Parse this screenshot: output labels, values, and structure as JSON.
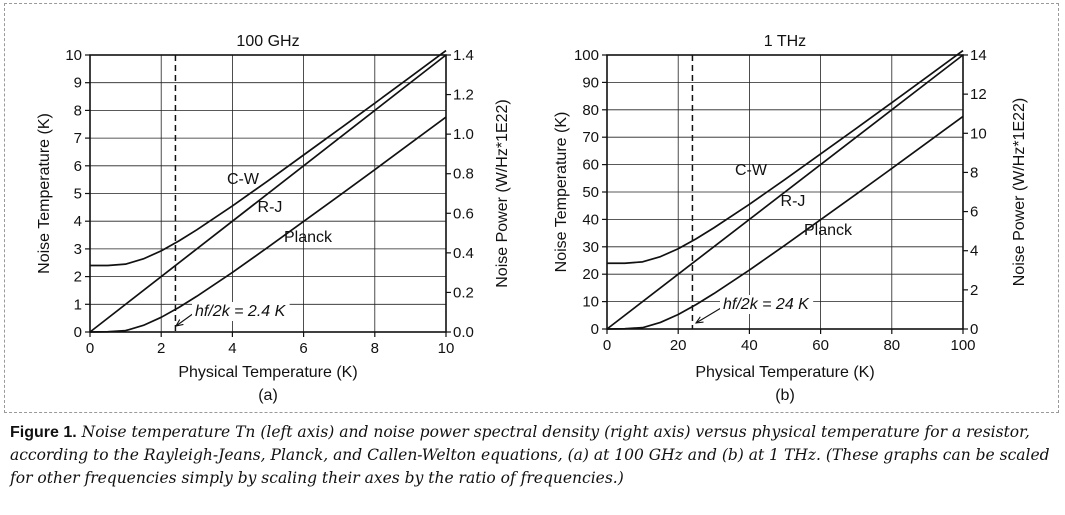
{
  "charts": [
    {
      "title": "100 GHz",
      "xlabel": "Physical Temperature (K)",
      "ylabel_left": "Noise Temperature (K)",
      "ylabel_right": "Noise Power (W/Hz*1E22)",
      "panel_label": "(a)",
      "annotation": "hf/2k = 2.4 K",
      "series_labels": [
        "C-W",
        "R-J",
        "Planck"
      ]
    },
    {
      "title": "1 THz",
      "xlabel": "Physical Temperature (K)",
      "ylabel_left": "Noise Temperature (K)",
      "ylabel_right": "Noise Power (W/Hz*1E22)",
      "panel_label": "(b)",
      "annotation": "hf/2k = 24 K",
      "series_labels": [
        "C-W",
        "R-J",
        "Planck"
      ]
    }
  ],
  "caption": {
    "label": "Figure 1.",
    "text": "Noise temperature Tn (left axis) and noise power spectral density (right axis) versus physical temperature for a resistor, according to the Rayleigh-Jeans, Planck, and Callen-Welton equations, (a) at 100 GHz and (b) at 1 THz. (These graphs can be scaled for other frequencies simply by scaling their axes by the ratio of frequencies.)"
  },
  "chart_data": [
    {
      "type": "line",
      "title": "100 GHz",
      "xlabel": "Physical Temperature (K)",
      "ylabel": "Noise Temperature (K)",
      "y2label": "Noise Power (W/Hz*1E22)",
      "xlim": [
        0,
        10
      ],
      "ylim": [
        0,
        10
      ],
      "y2lim": [
        0,
        1.4
      ],
      "xticks": [
        0,
        2,
        4,
        6,
        8,
        10
      ],
      "yticks": [
        0,
        1,
        2,
        3,
        4,
        5,
        6,
        7,
        8,
        9,
        10
      ],
      "y2ticks": [
        "0.0",
        "0.2",
        "0.4",
        "0.6",
        "0.8",
        "1.0",
        "1.2",
        "1.4"
      ],
      "grid": true,
      "vline": {
        "x": 2.4,
        "style": "dashed",
        "label": "hf/2k = 2.4 K"
      },
      "series": [
        {
          "name": "C-W",
          "x": [
            0,
            0.5,
            1,
            1.5,
            2,
            2.5,
            3,
            4,
            5,
            6,
            7,
            8,
            9,
            10
          ],
          "y": [
            2.4,
            2.4,
            2.45,
            2.64,
            2.93,
            3.29,
            3.69,
            4.55,
            5.46,
            6.39,
            7.32,
            8.26,
            9.21,
            10.16
          ]
        },
        {
          "name": "R-J",
          "x": [
            0,
            10
          ],
          "y": [
            0,
            10
          ]
        },
        {
          "name": "Planck",
          "x": [
            0,
            0.5,
            1,
            1.5,
            2,
            2.5,
            3,
            4,
            5,
            6,
            7,
            8,
            9,
            10
          ],
          "y": [
            0,
            0.01,
            0.05,
            0.24,
            0.53,
            0.89,
            1.29,
            2.15,
            3.06,
            3.99,
            4.92,
            5.86,
            6.81,
            7.76
          ]
        }
      ]
    },
    {
      "type": "line",
      "title": "1 THz",
      "xlabel": "Physical Temperature (K)",
      "ylabel": "Noise Temperature (K)",
      "y2label": "Noise Power (W/Hz*1E22)",
      "xlim": [
        0,
        100
      ],
      "ylim": [
        0,
        100
      ],
      "y2lim": [
        0,
        14
      ],
      "xticks": [
        0,
        20,
        40,
        60,
        80,
        100
      ],
      "yticks": [
        0,
        10,
        20,
        30,
        40,
        50,
        60,
        70,
        80,
        90,
        100
      ],
      "y2ticks": [
        "0",
        "2",
        "4",
        "6",
        "8",
        "10",
        "12",
        "14"
      ],
      "grid": true,
      "vline": {
        "x": 24,
        "style": "dashed",
        "label": "hf/2k = 24 K"
      },
      "series": [
        {
          "name": "C-W",
          "x": [
            0,
            5,
            10,
            15,
            20,
            25,
            30,
            40,
            50,
            60,
            70,
            80,
            90,
            100
          ],
          "y": [
            24.0,
            24.0,
            24.5,
            26.4,
            29.3,
            32.9,
            36.9,
            45.5,
            54.6,
            63.9,
            73.2,
            82.6,
            92.1,
            101.6
          ]
        },
        {
          "name": "R-J",
          "x": [
            0,
            100
          ],
          "y": [
            0,
            100
          ]
        },
        {
          "name": "Planck",
          "x": [
            0,
            5,
            10,
            15,
            20,
            25,
            30,
            40,
            50,
            60,
            70,
            80,
            90,
            100
          ],
          "y": [
            0,
            0.1,
            0.5,
            2.4,
            5.3,
            8.9,
            12.9,
            21.5,
            30.6,
            39.9,
            49.2,
            58.6,
            68.1,
            77.6
          ]
        }
      ]
    }
  ]
}
